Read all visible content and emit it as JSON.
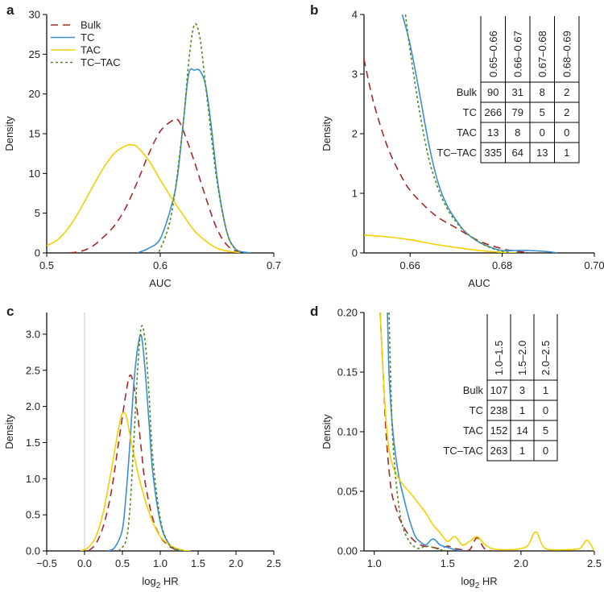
{
  "colors": {
    "Bulk": "#a52a2a",
    "TC": "#3a8fd4",
    "TAC": "#f4d000",
    "TC-TAC": "#4e8a1e"
  },
  "chart_data": [
    {
      "panel": "a",
      "type": "line",
      "xlabel": "AUC",
      "ylabel": "Density",
      "xlim": [
        0.5,
        0.7
      ],
      "ylim": [
        0,
        30
      ],
      "xticks": [
        0.5,
        0.6,
        0.7
      ],
      "xtick_labels": [
        "0.5",
        "0.6",
        "0.7"
      ],
      "yticks": [
        0,
        5,
        10,
        15,
        20,
        25,
        30
      ],
      "ytick_labels": [
        "0",
        "5",
        "10",
        "15",
        "20",
        "25",
        "30"
      ],
      "legend": {
        "position": "top-left",
        "entries": [
          "Bulk",
          "TC",
          "TAC",
          "TC–TAC"
        ]
      },
      "series": [
        {
          "name": "Bulk",
          "style": "dashed",
          "x": [
            0.52,
            0.53,
            0.54,
            0.55,
            0.56,
            0.57,
            0.58,
            0.59,
            0.6,
            0.61,
            0.615,
            0.62,
            0.63,
            0.64,
            0.65,
            0.66,
            0.67
          ],
          "y": [
            0,
            0.2,
            0.8,
            2,
            3.5,
            5.8,
            9,
            12.5,
            15.3,
            16.6,
            16.8,
            15.5,
            11.5,
            7,
            3,
            0.8,
            0.1
          ]
        },
        {
          "name": "TC",
          "style": "solid",
          "x": [
            0.58,
            0.59,
            0.6,
            0.61,
            0.615,
            0.62,
            0.625,
            0.63,
            0.635,
            0.64,
            0.645,
            0.65,
            0.655,
            0.66,
            0.665,
            0.67,
            0.68
          ],
          "y": [
            0,
            0.6,
            1.8,
            6,
            9.5,
            16,
            22.5,
            23,
            22.9,
            21,
            15.8,
            9.5,
            5,
            2,
            0.7,
            0.2,
            0
          ]
        },
        {
          "name": "TAC",
          "style": "solid",
          "x": [
            0.5,
            0.51,
            0.52,
            0.53,
            0.54,
            0.55,
            0.56,
            0.57,
            0.575,
            0.58,
            0.59,
            0.6,
            0.61,
            0.62,
            0.63,
            0.64,
            0.65,
            0.66,
            0.67
          ],
          "y": [
            0.9,
            1.7,
            3.3,
            5.6,
            8.2,
            10.7,
            12.6,
            13.5,
            13.6,
            13.3,
            11.6,
            9.2,
            6.9,
            4.8,
            2.8,
            1.5,
            0.6,
            0.2,
            0.05
          ]
        },
        {
          "name": "TC–TAC",
          "style": "dotted",
          "x": [
            0.595,
            0.6,
            0.61,
            0.62,
            0.625,
            0.63,
            0.635,
            0.64,
            0.65,
            0.66,
            0.67
          ],
          "y": [
            0,
            0.5,
            5,
            16,
            24,
            28.7,
            27,
            21,
            9,
            2,
            0
          ]
        }
      ]
    },
    {
      "panel": "b",
      "type": "line",
      "xlabel": "AUC",
      "ylabel": "Density",
      "xlim": [
        0.65,
        0.7
      ],
      "ylim": [
        0,
        4
      ],
      "xticks": [
        0.66,
        0.68,
        0.7
      ],
      "xtick_labels": [
        "0.66",
        "0.68",
        "0.70"
      ],
      "yticks": [
        0,
        1,
        2,
        3,
        4
      ],
      "ytick_labels": [
        "0",
        "1",
        "2",
        "3",
        "4"
      ],
      "series": [
        {
          "name": "Bulk",
          "style": "dashed",
          "x": [
            0.65,
            0.652,
            0.655,
            0.658,
            0.66,
            0.663,
            0.666,
            0.67,
            0.675,
            0.68,
            0.683,
            0.686
          ],
          "y": [
            3.25,
            2.55,
            1.8,
            1.3,
            1.05,
            0.8,
            0.6,
            0.42,
            0.2,
            0.07,
            0.03,
            0
          ]
        },
        {
          "name": "TC",
          "style": "solid",
          "x": [
            0.6583,
            0.66,
            0.662,
            0.664,
            0.666,
            0.668,
            0.67,
            0.672,
            0.675,
            0.678,
            0.68,
            0.683,
            0.686,
            0.69,
            0.692
          ],
          "y": [
            4,
            3.5,
            2.7,
            1.85,
            1.2,
            0.8,
            0.55,
            0.35,
            0.18,
            0.08,
            0.04,
            0.04,
            0.04,
            0.02,
            0
          ]
        },
        {
          "name": "TAC",
          "style": "solid",
          "x": [
            0.65,
            0.655,
            0.66,
            0.665,
            0.67,
            0.675,
            0.68,
            0.683
          ],
          "y": [
            0.3,
            0.27,
            0.22,
            0.15,
            0.09,
            0.04,
            0.01,
            0
          ]
        },
        {
          "name": "TC–TAC",
          "style": "dotted",
          "x": [
            0.659,
            0.66,
            0.662,
            0.664,
            0.666,
            0.668,
            0.67,
            0.672,
            0.675,
            0.678,
            0.68,
            0.682
          ],
          "y": [
            4,
            3.4,
            2.4,
            1.6,
            1.1,
            0.75,
            0.52,
            0.35,
            0.18,
            0.07,
            0.03,
            0
          ]
        }
      ],
      "table": {
        "columns": [
          "0.65–0.66",
          "0.66–0.67",
          "0.67–0.68",
          "0.68–0.69"
        ],
        "rows": [
          {
            "label": "Bulk",
            "values": [
              "90",
              "31",
              "8",
              "2"
            ]
          },
          {
            "label": "TC",
            "values": [
              "266",
              "79",
              "5",
              "2"
            ]
          },
          {
            "label": "TAC",
            "values": [
              "13",
              "8",
              "0",
              "0"
            ]
          },
          {
            "label": "TC–TAC",
            "values": [
              "335",
              "64",
              "13",
              "1"
            ]
          }
        ]
      }
    },
    {
      "panel": "c",
      "type": "line",
      "xlabel": "log2 HR",
      "ylabel": "Density",
      "xlim": [
        -0.5,
        2.5
      ],
      "ylim": [
        0,
        3.3
      ],
      "xticks": [
        -0.5,
        0.0,
        0.5,
        1.0,
        1.5,
        2.0,
        2.5
      ],
      "xtick_labels": [
        "−0.5",
        "0.0",
        "0.5",
        "1.0",
        "1.5",
        "2.0",
        "2.5"
      ],
      "yticks": [
        0,
        0.5,
        1.0,
        1.5,
        2.0,
        2.5,
        3.0
      ],
      "ytick_labels": [
        "0.0",
        "0.5",
        "1.0",
        "1.5",
        "2.0",
        "2.5",
        "3.0"
      ],
      "vline_x": 0,
      "series": [
        {
          "name": "Bulk",
          "style": "dashed",
          "x": [
            0.05,
            0.15,
            0.25,
            0.35,
            0.45,
            0.55,
            0.6,
            0.65,
            0.7,
            0.75,
            0.8,
            0.9,
            1.0,
            1.1,
            1.2,
            1.3
          ],
          "y": [
            0,
            0.1,
            0.35,
            0.8,
            1.5,
            2.2,
            2.43,
            2.3,
            1.9,
            1.4,
            0.95,
            0.45,
            0.2,
            0.08,
            0.02,
            0
          ]
        },
        {
          "name": "TC",
          "style": "solid",
          "x": [
            0.3,
            0.4,
            0.5,
            0.55,
            0.6,
            0.65,
            0.7,
            0.75,
            0.8,
            0.85,
            0.9,
            1.0,
            1.1,
            1.2,
            1.3
          ],
          "y": [
            0,
            0.05,
            0.3,
            0.8,
            1.5,
            2.3,
            2.8,
            2.98,
            2.5,
            1.8,
            1.1,
            0.4,
            0.12,
            0.03,
            0
          ]
        },
        {
          "name": "TAC",
          "style": "solid",
          "x": [
            -0.05,
            0.05,
            0.15,
            0.25,
            0.35,
            0.45,
            0.5,
            0.55,
            0.6,
            0.7,
            0.8,
            0.9,
            1.0,
            1.1,
            1.2,
            1.3,
            1.4
          ],
          "y": [
            0,
            0.05,
            0.2,
            0.55,
            1.1,
            1.7,
            1.9,
            1.87,
            1.6,
            1.1,
            0.7,
            0.4,
            0.2,
            0.1,
            0.04,
            0.01,
            0
          ]
        },
        {
          "name": "TC–TAC",
          "style": "dotted",
          "x": [
            0.45,
            0.55,
            0.6,
            0.65,
            0.7,
            0.75,
            0.8,
            0.85,
            0.9,
            1.0,
            1.1,
            1.2,
            1.3
          ],
          "y": [
            0,
            0.15,
            0.6,
            1.5,
            2.5,
            3.1,
            2.9,
            2.2,
            1.3,
            0.45,
            0.12,
            0.03,
            0
          ]
        }
      ]
    },
    {
      "panel": "d",
      "type": "line",
      "xlabel": "log2 HR",
      "ylabel": "Density",
      "xlim": [
        0.93,
        2.5
      ],
      "ylim": [
        0,
        0.2
      ],
      "xticks": [
        1.0,
        1.5,
        2.0,
        2.5
      ],
      "xtick_labels": [
        "1.0",
        "1.5",
        "2.0",
        "2.5"
      ],
      "yticks": [
        0,
        0.05,
        0.1,
        0.15,
        0.2
      ],
      "ytick_labels": [
        "0.00",
        "0.05",
        "0.10",
        "0.15",
        "0.20"
      ],
      "series": [
        {
          "name": "Bulk",
          "style": "dashed",
          "x": [
            1.04,
            1.06,
            1.08,
            1.1,
            1.12,
            1.15,
            1.18,
            1.22,
            1.26,
            1.3,
            1.34,
            1.4,
            1.45,
            1.5,
            1.55,
            1.6,
            1.65,
            1.7,
            1.75,
            1.8
          ],
          "y": [
            0.2,
            0.15,
            0.1,
            0.068,
            0.048,
            0.035,
            0.025,
            0.016,
            0.01,
            0.006,
            0.004,
            0.003,
            0.002,
            0.004,
            0.002,
            0.001,
            0.001,
            0.011,
            0.002,
            0
          ]
        },
        {
          "name": "TC",
          "style": "solid",
          "x": [
            1.09,
            1.1,
            1.12,
            1.14,
            1.16,
            1.18,
            1.2,
            1.22,
            1.25,
            1.28,
            1.31,
            1.35,
            1.4,
            1.45,
            1.5,
            1.55,
            1.6
          ],
          "y": [
            0.2,
            0.15,
            0.11,
            0.085,
            0.068,
            0.055,
            0.045,
            0.035,
            0.022,
            0.012,
            0.008,
            0.005,
            0.01,
            0.005,
            0.003,
            0.001,
            0
          ]
        },
        {
          "name": "TAC",
          "style": "solid",
          "x": [
            1.04,
            1.06,
            1.08,
            1.1,
            1.13,
            1.16,
            1.2,
            1.25,
            1.3,
            1.35,
            1.4,
            1.45,
            1.5,
            1.55,
            1.6,
            1.65,
            1.7,
            1.75,
            1.8,
            1.9,
            2.0,
            2.05,
            2.1,
            2.15,
            2.2,
            2.3,
            2.4,
            2.45,
            2.5
          ],
          "y": [
            0.2,
            0.15,
            0.11,
            0.085,
            0.07,
            0.062,
            0.055,
            0.048,
            0.04,
            0.032,
            0.022,
            0.015,
            0.008,
            0.012,
            0.005,
            0.008,
            0.012,
            0.006,
            0.002,
            0.001,
            0.002,
            0.005,
            0.016,
            0.004,
            0.001,
            0.001,
            0.002,
            0.009,
            0
          ]
        },
        {
          "name": "TC–TAC",
          "style": "dotted",
          "x": [
            1.1,
            1.12,
            1.14,
            1.16,
            1.18,
            1.2,
            1.22,
            1.25,
            1.28,
            1.31,
            1.35,
            1.4,
            1.45,
            1.5
          ],
          "y": [
            0.2,
            0.11,
            0.07,
            0.045,
            0.028,
            0.018,
            0.012,
            0.006,
            0.003,
            0.002,
            0.004,
            0.003,
            0.001,
            0
          ]
        }
      ],
      "table": {
        "columns": [
          "1.0–1.5",
          "1.5–2.0",
          "2.0–2.5"
        ],
        "rows": [
          {
            "label": "Bulk",
            "values": [
              "107",
              "3",
              "1"
            ]
          },
          {
            "label": "TC",
            "values": [
              "238",
              "1",
              "0"
            ]
          },
          {
            "label": "TAC",
            "values": [
              "152",
              "14",
              "5"
            ]
          },
          {
            "label": "TC–TAC",
            "values": [
              "263",
              "1",
              "0"
            ]
          }
        ]
      }
    }
  ]
}
